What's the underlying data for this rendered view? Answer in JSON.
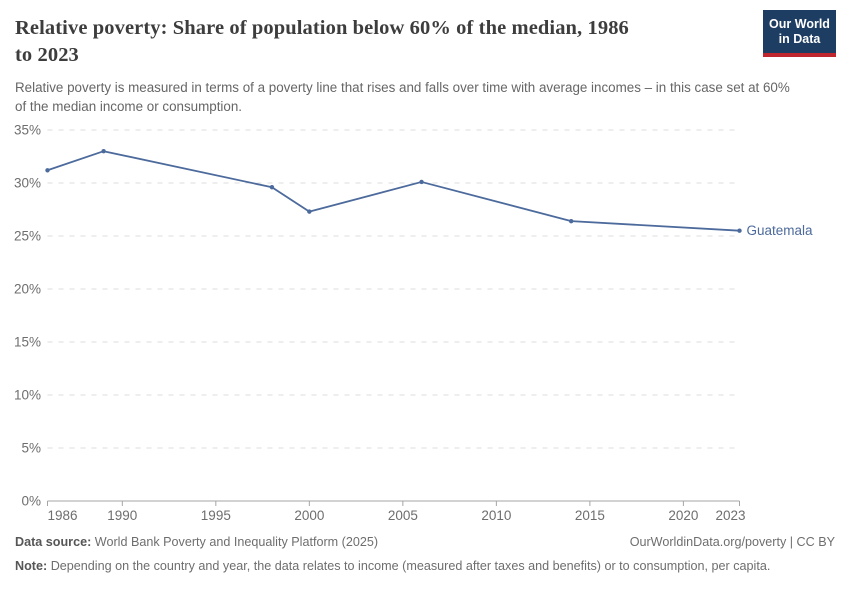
{
  "header": {
    "title_line1": "Relative poverty: Share of population below 60% of the median, 1986",
    "title_line2": "to 2023",
    "subtitle": "Relative poverty is measured in terms of a poverty line that rises and falls over time with average incomes – in this case set at 60% of the median income or consumption.",
    "logo": {
      "line1": "Our World",
      "line2": "in Data",
      "bg": "#1d3d63",
      "bar": "#c0262d"
    }
  },
  "chart_data": {
    "type": "line",
    "title": "Relative poverty: Share of population below 60% of the median, 1986 to 2023",
    "xlabel": "",
    "ylabel": "",
    "xlim": [
      1986,
      2023
    ],
    "ylim": [
      0,
      35
    ],
    "xticks": [
      1986,
      1990,
      1995,
      2000,
      2005,
      2010,
      2015,
      2020,
      2023
    ],
    "yticks": [
      0,
      5,
      10,
      15,
      20,
      25,
      30,
      35
    ],
    "ytick_suffix": "%",
    "grid": "horizontal-dashed",
    "legend": "end-of-line-label",
    "series": [
      {
        "name": "Guatemala",
        "color": "#4C6A9C",
        "points": [
          {
            "x": 1986,
            "y": 31.2
          },
          {
            "x": 1989,
            "y": 33.0
          },
          {
            "x": 1998,
            "y": 29.6
          },
          {
            "x": 2000,
            "y": 27.3
          },
          {
            "x": 2006,
            "y": 30.1
          },
          {
            "x": 2014,
            "y": 26.4
          },
          {
            "x": 2023,
            "y": 25.5
          }
        ]
      }
    ],
    "colors": {
      "grid": "#dddddd",
      "axis": "#a5a5a5",
      "tick_text": "#6e6e6e"
    }
  },
  "footer": {
    "datasource_label": "Data source:",
    "datasource_text": "World Bank Poverty and Inequality Platform (2025)",
    "link": "OurWorldinData.org/poverty | CC BY",
    "note_label": "Note:",
    "note_text": "Depending on the country and year, the data relates to income (measured after taxes and benefits) or to consumption, per capita."
  }
}
